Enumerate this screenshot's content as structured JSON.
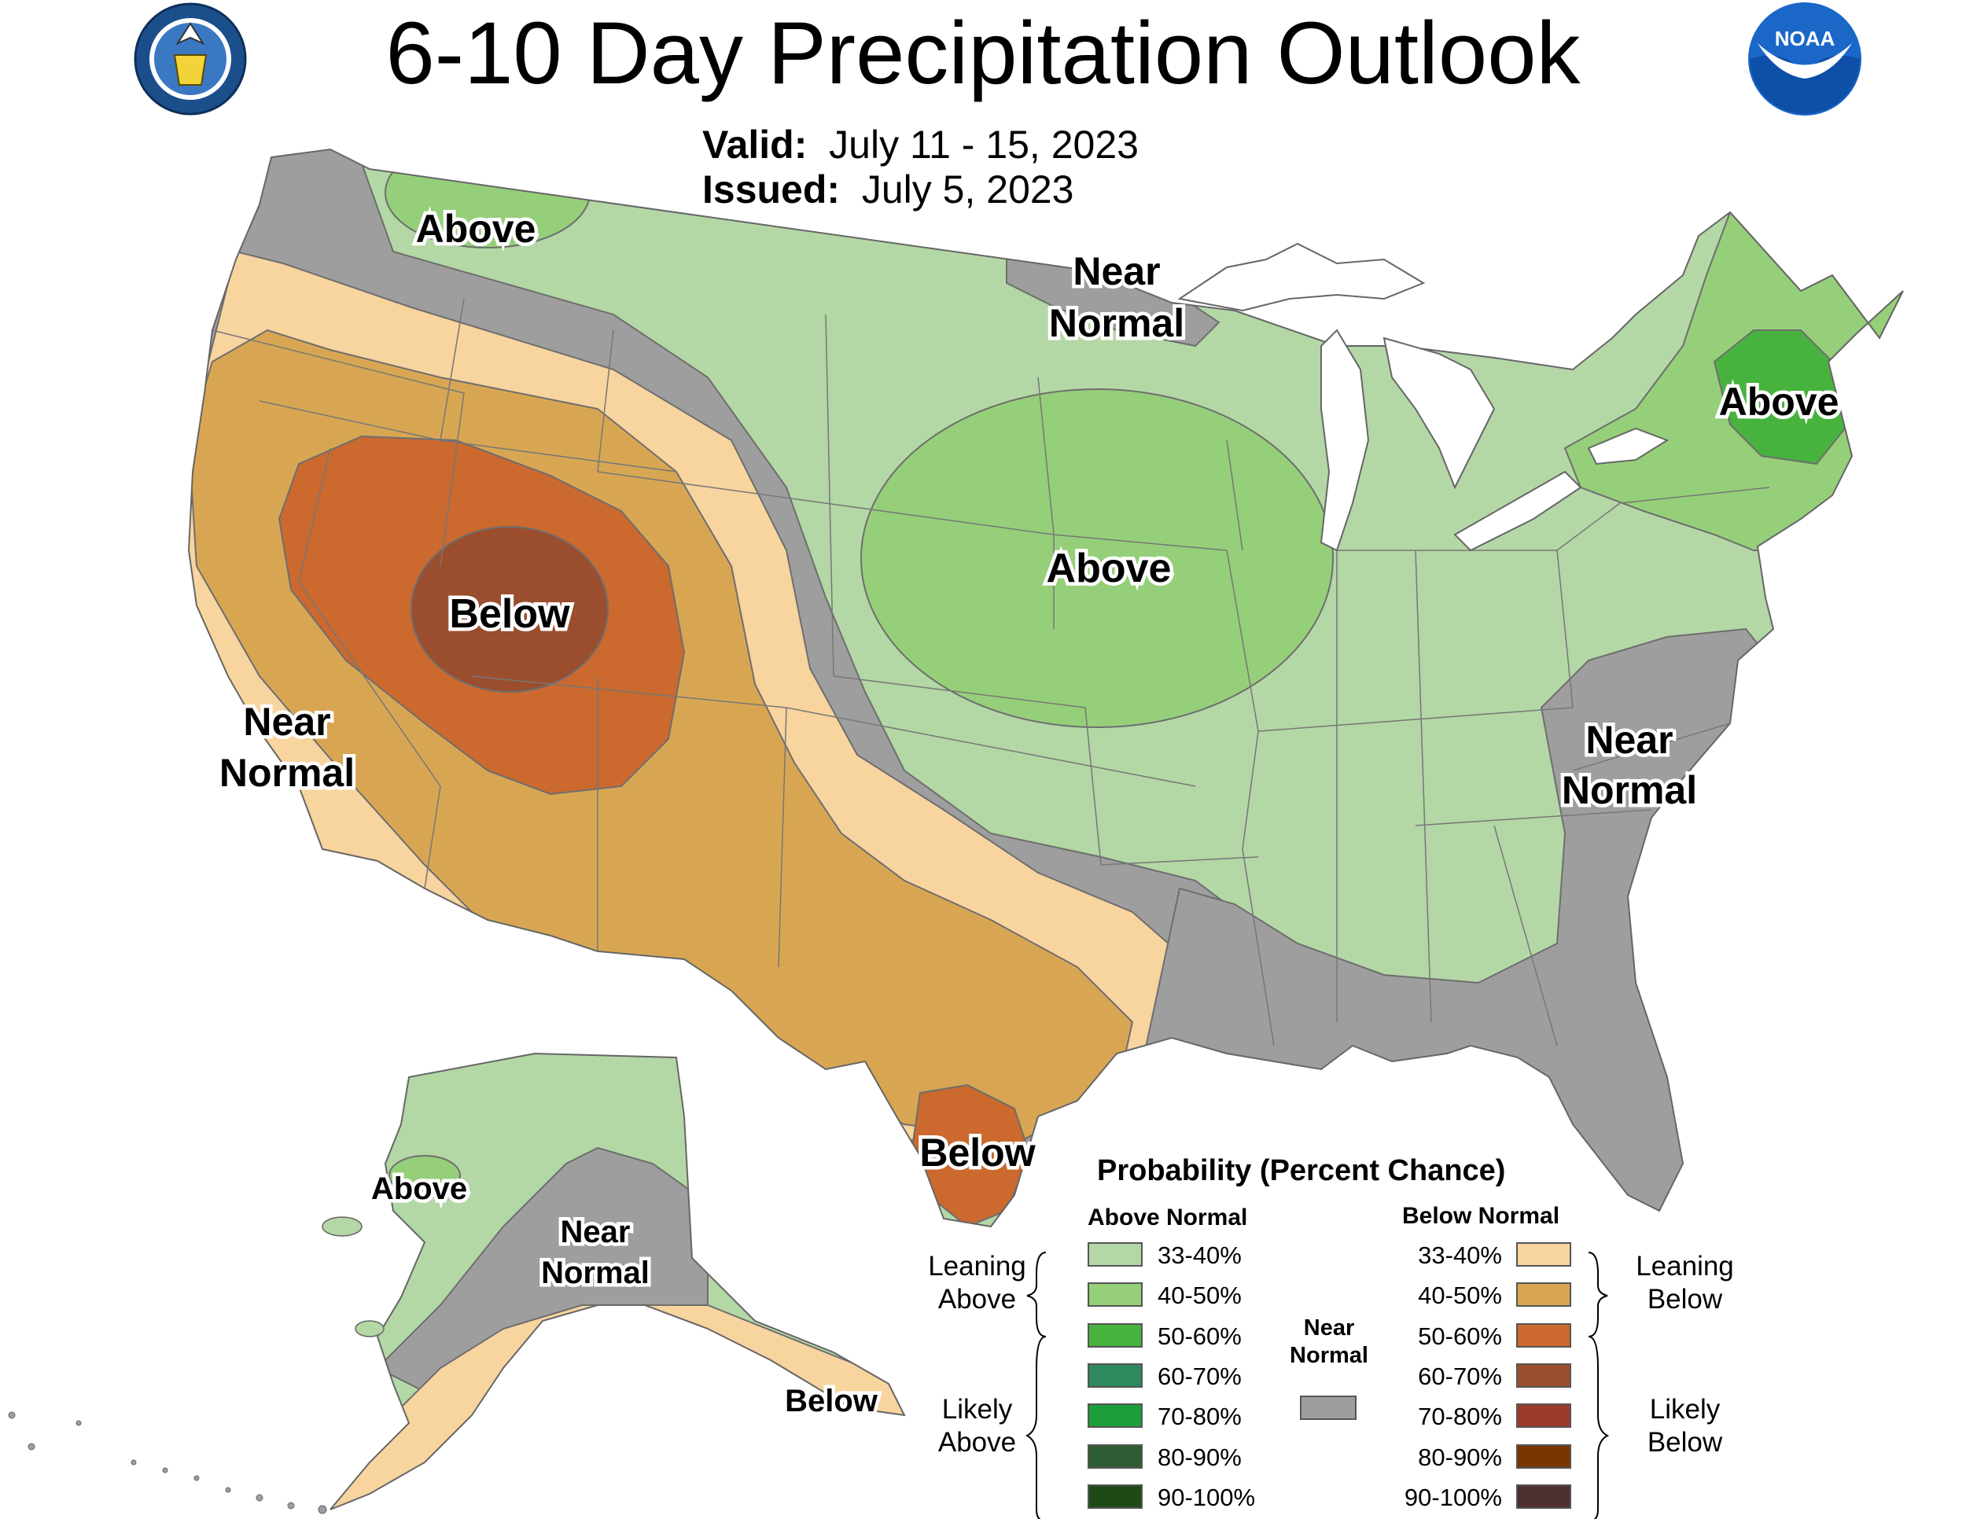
{
  "title": "6-10 Day Precipitation Outlook",
  "valid_label": "Valid:",
  "valid_value": "July 11 - 15, 2023",
  "issued_label": "Issued:",
  "issued_value": "July 5, 2023",
  "seal_text": "DEPARTMENT OF COMMERCE · UNITED STATES OF AMERICA",
  "noaa_text": "NOAA",
  "colors": {
    "above_33_40": "#b4d7a6",
    "above_40_50": "#96cf7a",
    "above_50_60": "#47b33e",
    "near_normal": "#9e9e9e",
    "below_33_40": "#f8d49e",
    "below_40_50": "#d8a653",
    "below_50_60": "#cb692e",
    "below_60_70": "#9a4e2e",
    "lake": "#ffffff"
  },
  "map_labels": {
    "above_nw": "Above",
    "near_normal_upper": [
      "Near",
      "Normal"
    ],
    "above_northeast": "Above",
    "above_midwest": "Above",
    "below_great_basin": "Below",
    "near_normal_west": [
      "Near",
      "Normal"
    ],
    "near_normal_southeast": [
      "Near",
      "Normal"
    ],
    "below_south_texas": "Below",
    "above_alaska": "Above",
    "near_normal_alaska": [
      "Near",
      "Normal"
    ],
    "below_alaska": "Below"
  },
  "legend": {
    "title": "Probability (Percent Chance)",
    "above_header": "Above Normal",
    "below_header": "Below Normal",
    "leaning_above": [
      "Leaning",
      "Above"
    ],
    "likely_above": [
      "Likely",
      "Above"
    ],
    "leaning_below": [
      "Leaning",
      "Below"
    ],
    "likely_below": [
      "Likely",
      "Below"
    ],
    "near_normal": [
      "Near",
      "Normal"
    ],
    "above": [
      {
        "range": "33-40%",
        "color": "#b4d7a6"
      },
      {
        "range": "40-50%",
        "color": "#96cf7a"
      },
      {
        "range": "50-60%",
        "color": "#47b33e"
      },
      {
        "range": "60-70%",
        "color": "#2e8a5e"
      },
      {
        "range": "70-80%",
        "color": "#1c9e3a"
      },
      {
        "range": "80-90%",
        "color": "#2f5d33"
      },
      {
        "range": "90-100%",
        "color": "#1f4a16"
      }
    ],
    "below": [
      {
        "range": "33-40%",
        "color": "#f8d49e"
      },
      {
        "range": "40-50%",
        "color": "#d8a653"
      },
      {
        "range": "50-60%",
        "color": "#cb692e"
      },
      {
        "range": "60-70%",
        "color": "#9a4e2e"
      },
      {
        "range": "70-80%",
        "color": "#9c3a2c"
      },
      {
        "range": "80-90%",
        "color": "#7a3600"
      },
      {
        "range": "90-100%",
        "color": "#4e2f32"
      }
    ],
    "near_normal_color": "#9e9e9e"
  }
}
